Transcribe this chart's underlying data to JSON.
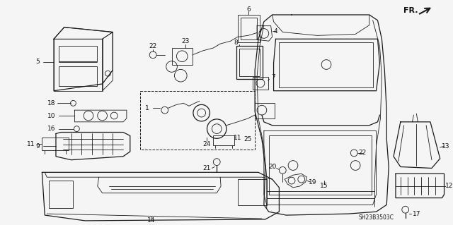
{
  "background_color": "#f5f5f5",
  "line_color": "#1a1a1a",
  "text_color": "#111111",
  "fig_width": 6.4,
  "fig_height": 3.19,
  "dpi": 100,
  "part_num_text": "SH23B3503C"
}
